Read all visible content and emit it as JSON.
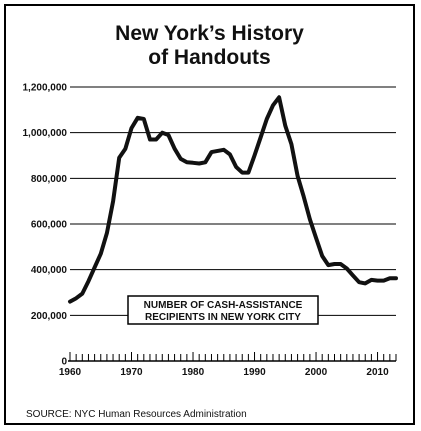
{
  "chart_data": {
    "type": "line",
    "title_line1": "New York’s History",
    "title_line2": "of Handouts",
    "annotation_line1": "NUMBER OF CASH-ASSISTANCE",
    "annotation_line2": "RECIPIENTS IN NEW YORK CITY",
    "source": "SOURCE: NYC Human Resources Administration",
    "ylim": [
      0,
      1200000
    ],
    "xlim": [
      1960,
      2013
    ],
    "grid": true,
    "y_ticks": [
      0,
      200000,
      400000,
      600000,
      800000,
      1000000,
      1200000
    ],
    "y_tick_labels": [
      "0",
      "200,000",
      "400,000",
      "600,000",
      "800,000",
      "1,000,000",
      "1,200,000"
    ],
    "x_ticks": [
      1960,
      1970,
      1980,
      1990,
      2000,
      2010
    ],
    "x_tick_labels": [
      "1960",
      "1970",
      "1980",
      "1990",
      "2000",
      "2010"
    ],
    "series": [
      {
        "x": [
          1960,
          1961,
          1962,
          1963,
          1964,
          1965,
          1966,
          1967,
          1968,
          1969,
          1970,
          1971,
          1972,
          1973,
          1974,
          1975,
          1976,
          1977,
          1978,
          1979,
          1980,
          1981,
          1982,
          1983,
          1984,
          1985,
          1986,
          1987,
          1988,
          1989,
          1990,
          1991,
          1992,
          1993,
          1994,
          1995,
          1996,
          1997,
          1998,
          1999,
          2000,
          2001,
          2002,
          2003,
          2004,
          2005,
          2006,
          2007,
          2008,
          2009,
          2010,
          2011,
          2012,
          2013
        ],
        "values": [
          260000,
          275000,
          295000,
          350000,
          410000,
          470000,
          560000,
          700000,
          890000,
          930000,
          1020000,
          1065000,
          1060000,
          970000,
          970000,
          1000000,
          990000,
          930000,
          885000,
          870000,
          868000,
          865000,
          870000,
          915000,
          920000,
          925000,
          905000,
          850000,
          825000,
          825000,
          900000,
          980000,
          1060000,
          1120000,
          1155000,
          1030000,
          950000,
          810000,
          720000,
          620000,
          540000,
          460000,
          420000,
          425000,
          425000,
          405000,
          375000,
          345000,
          340000,
          355000,
          352000,
          352000,
          362000,
          362000
        ]
      }
    ],
    "colors": {
      "line": "#111111",
      "grid": "#000000",
      "background": "#ffffff"
    }
  }
}
